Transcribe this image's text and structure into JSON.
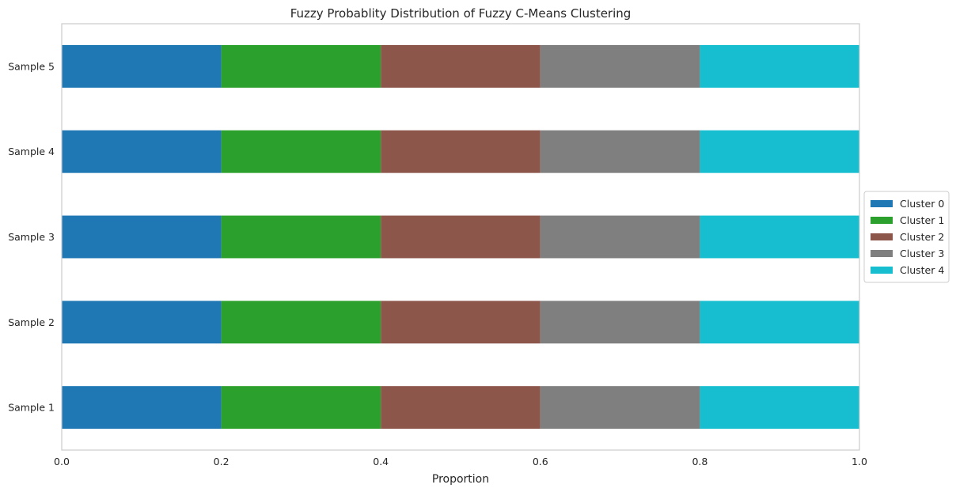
{
  "chart_data": {
    "type": "bar",
    "orientation": "horizontal",
    "stacked": true,
    "title": "Fuzzy Probablity Distribution of Fuzzy C-Means Clustering",
    "xlabel": "Proportion",
    "ylabel": "",
    "xlim": [
      0,
      1
    ],
    "xticks": [
      "0.0",
      "0.2",
      "0.4",
      "0.6",
      "0.8",
      "1.0"
    ],
    "grid": false,
    "legend_position": "center-right outside",
    "categories": [
      "Sample 1",
      "Sample 2",
      "Sample 3",
      "Sample 4",
      "Sample 5"
    ],
    "series": [
      {
        "name": "Cluster 0",
        "color": "#1f77b4",
        "values": [
          0.2,
          0.2,
          0.2,
          0.2,
          0.2
        ]
      },
      {
        "name": "Cluster 1",
        "color": "#2ca02c",
        "values": [
          0.2,
          0.2,
          0.2,
          0.2,
          0.2
        ]
      },
      {
        "name": "Cluster 2",
        "color": "#8c564b",
        "values": [
          0.2,
          0.2,
          0.2,
          0.2,
          0.2
        ]
      },
      {
        "name": "Cluster 3",
        "color": "#7f7f7f",
        "values": [
          0.2,
          0.2,
          0.2,
          0.2,
          0.2
        ]
      },
      {
        "name": "Cluster 4",
        "color": "#17becf",
        "values": [
          0.2,
          0.2,
          0.2,
          0.2,
          0.2
        ]
      }
    ]
  }
}
